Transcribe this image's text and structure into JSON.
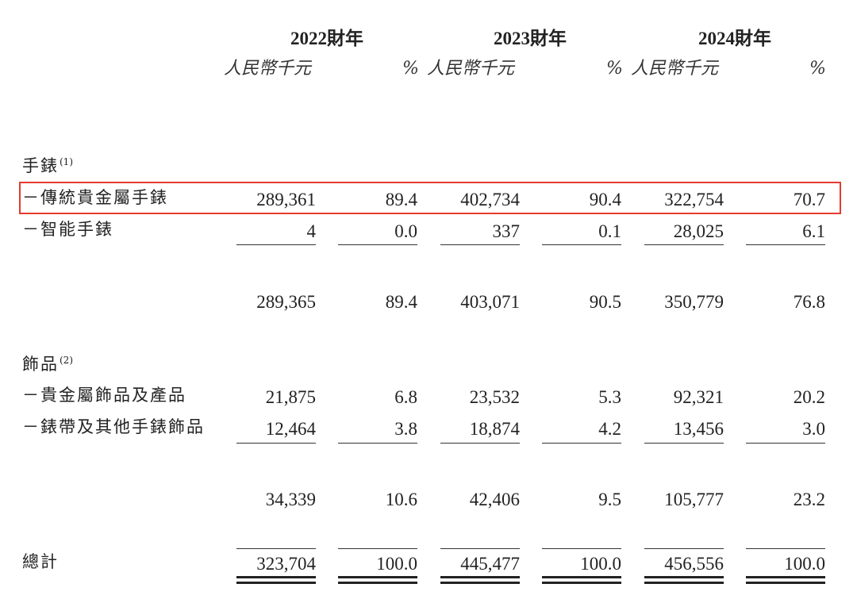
{
  "header": {
    "years": [
      "2022財年",
      "2023財年",
      "2024財年"
    ],
    "unit_amount": "人民幣千元",
    "unit_pct": "%"
  },
  "accent_color": "#e53b2e",
  "sections": {
    "watches": {
      "label": "手錶",
      "note": "(1)"
    },
    "accessories": {
      "label": "飾品",
      "note": "(2)"
    }
  },
  "rows": [
    {
      "label": "－傳統貴金屬手錶",
      "values": [
        "289,361",
        "89.4",
        "402,734",
        "90.4",
        "322,754",
        "70.7"
      ],
      "highlighted": true
    },
    {
      "label": "－智能手錶",
      "values": [
        "4",
        "0.0",
        "337",
        "0.1",
        "28,025",
        "6.1"
      ]
    },
    {
      "label": "",
      "values": [
        "289,365",
        "89.4",
        "403,071",
        "90.5",
        "350,779",
        "76.8"
      ]
    },
    {
      "label": "－貴金屬飾品及產品",
      "values": [
        "21,875",
        "6.8",
        "23,532",
        "5.3",
        "92,321",
        "20.2"
      ]
    },
    {
      "label": "－錶帶及其他手錶飾品",
      "values": [
        "12,464",
        "3.8",
        "18,874",
        "4.2",
        "13,456",
        "3.0"
      ]
    },
    {
      "label": "",
      "values": [
        "34,339",
        "10.6",
        "42,406",
        "9.5",
        "105,777",
        "23.2"
      ]
    },
    {
      "label": "總計",
      "values": [
        "323,704",
        "100.0",
        "445,477",
        "100.0",
        "456,556",
        "100.0"
      ]
    }
  ]
}
